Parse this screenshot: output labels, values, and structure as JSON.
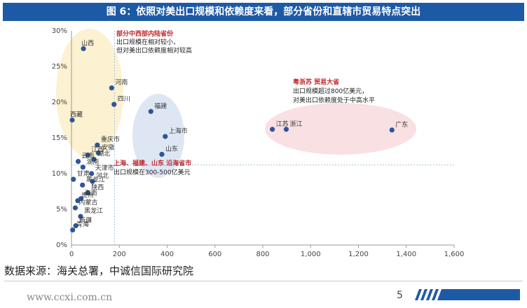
{
  "title": "图 6：依照对美出口规模和依赖度来看，部分省份和直辖市贸易特点突出",
  "source": "数据来源：海关总署，中诚信国际研究院",
  "site": "www.ccxi.com.cn",
  "page": "5",
  "colors": {
    "title_bar": "#1d5aa6",
    "point": "#2f5597",
    "ref_line": "#9dc3e6",
    "group_inland": "#fbefc9",
    "group_coastal": "#dae3f3",
    "group_big": "#f8dde0"
  },
  "chart_data": {
    "type": "scatter",
    "xlim": [
      0,
      1600
    ],
    "ylim": [
      0,
      30
    ],
    "x_ticks": [
      0,
      200,
      400,
      600,
      800,
      1000,
      1200,
      1400,
      1600
    ],
    "x_tick_labels": [
      "0",
      "200",
      "400",
      "600",
      "800",
      "1,000",
      "1,200",
      "1,400",
      "1,600"
    ],
    "y_ticks": [
      0,
      5,
      10,
      15,
      20,
      25,
      30
    ],
    "y_tick_labels": [
      "0%",
      "5%",
      "10%",
      "15%",
      "20%",
      "25%",
      "30%"
    ],
    "ref_x": 180,
    "ref_y": 11.2,
    "points": [
      {
        "label": "山西",
        "x": 50,
        "y": 27.5
      },
      {
        "label": "河南",
        "x": 168,
        "y": 22
      },
      {
        "label": "四川",
        "x": 178,
        "y": 19.7
      },
      {
        "label": "西藏",
        "x": 3,
        "y": 17.5
      },
      {
        "label": "福建",
        "x": 332,
        "y": 18.7
      },
      {
        "label": "上海市",
        "x": 392,
        "y": 15.2
      },
      {
        "label": "山东",
        "x": 378,
        "y": 12.7
      },
      {
        "label": "江苏",
        "x": 840,
        "y": 16.2
      },
      {
        "label": "浙江",
        "x": 898,
        "y": 16.2
      },
      {
        "label": "广东",
        "x": 1340,
        "y": 16.1
      },
      {
        "label": "重庆市",
        "x": 108,
        "y": 14
      },
      {
        "label": "安徽",
        "x": 112,
        "y": 12.9
      },
      {
        "label": "江西",
        "x": 68,
        "y": 12.6
      },
      {
        "label": "湖北",
        "x": 94,
        "y": 12
      },
      {
        "label": "云南",
        "x": 28,
        "y": 11.7
      },
      {
        "label": "湖南",
        "x": 48,
        "y": 10.9
      },
      {
        "label": "天津市",
        "x": 84,
        "y": 10
      },
      {
        "label": "甘肃",
        "x": 8,
        "y": 9.2
      },
      {
        "label": "河北",
        "x": 88,
        "y": 8.9
      },
      {
        "label": "黑龙江",
        "x": 46,
        "y": 8.4
      },
      {
        "label": "陕西",
        "x": 68,
        "y": 7.3
      },
      {
        "label": "海南",
        "x": 40,
        "y": 6.5
      },
      {
        "label": "贵州",
        "x": 26,
        "y": 6.2
      },
      {
        "label": "内蒙古",
        "x": 16,
        "y": 5.2
      },
      {
        "label": "黑龙江",
        "x": 38,
        "y": 4
      },
      {
        "label": "新疆",
        "x": 18,
        "y": 2.7
      },
      {
        "label": "青海",
        "x": 5,
        "y": 2.1
      }
    ],
    "annotations": [
      {
        "lines": [
          "部分中西部内陆省份",
          "出口规模在相对较小，",
          "但对美出口依赖度相对较高"
        ]
      },
      {
        "lines": [
          "粤浙苏 贸易大省",
          "出口规模超过800亿美元，",
          "对美出口依赖度处于中高水平"
        ]
      },
      {
        "lines": [
          "上海、福建、山东 沿海省市",
          "出口规模在300-500亿美元"
        ]
      }
    ]
  }
}
